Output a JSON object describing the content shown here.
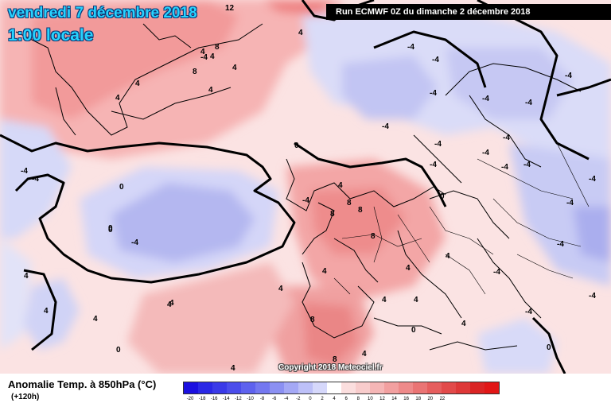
{
  "header": {
    "date": "vendredi 7 décembre 2018",
    "time": "1:00 locale",
    "run": "Run ECMWF 0Z du dimanche 2 décembre 2018"
  },
  "copyright": "Copyright 2018 Meteociel.fr",
  "legend": {
    "title": "Anomalie Temp. à 850hPa (°C)",
    "lead": "(+120h)",
    "ticks": [
      "-20",
      "-18",
      "-16",
      "-14",
      "-12",
      "-10",
      "-8",
      "-6",
      "-4",
      "-2",
      "0",
      "2",
      "4",
      "6",
      "8",
      "10",
      "12",
      "14",
      "16",
      "18",
      "20",
      "22"
    ],
    "colors": [
      "#1b10e0",
      "#2a28e6",
      "#3a3ae8",
      "#4b4deb",
      "#5e62ee",
      "#7478f0",
      "#8b90f2",
      "#a4a8f5",
      "#bdc0f8",
      "#d6d8fb",
      "#ffffff",
      "#fbdede",
      "#f8cccc",
      "#f5b6b6",
      "#f2a0a0",
      "#ee8a8a",
      "#ea7474",
      "#e65e5e",
      "#e24a4a",
      "#de3838",
      "#da2424",
      "#e11616"
    ]
  },
  "contour_labels": [
    "12",
    "4",
    "4",
    "-4",
    "8",
    "8",
    "4",
    "-4",
    "-4",
    "-4",
    "-4",
    "-4",
    "-4",
    "4",
    "4",
    "4",
    "-4",
    "0",
    "0",
    "-4",
    "-4",
    "-4",
    "-4",
    "0",
    "4",
    "0",
    "4",
    "-4",
    "-4",
    "-4",
    "-4",
    "-4",
    "-4",
    "0",
    "0",
    "4",
    "0",
    "4",
    "8",
    "8",
    "8",
    "8",
    "4",
    "8",
    "4",
    "4",
    "4",
    "0",
    "4",
    "-4",
    "4",
    "4",
    "-4",
    "-4",
    "8",
    "-4",
    "-4",
    "4",
    "-4",
    "4",
    "4",
    "4",
    "4"
  ]
}
